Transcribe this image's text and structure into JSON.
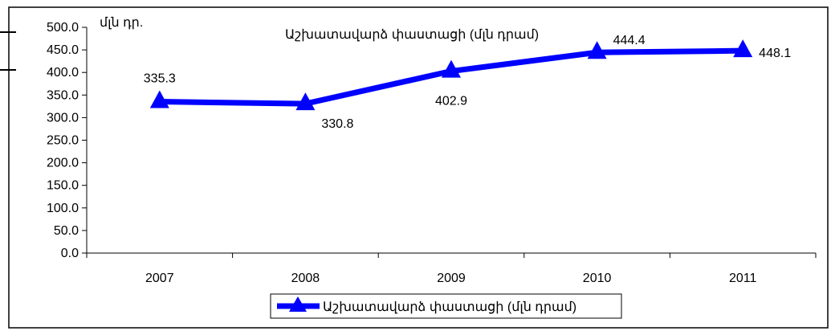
{
  "chart_data": {
    "type": "line",
    "title": "Աշխատավարձ փաստացի (մլն դրամ)",
    "unit_label": "մլն դր.",
    "categories": [
      "2007",
      "2008",
      "2009",
      "2010",
      "2011"
    ],
    "series": [
      {
        "name": "Աշխատավարձ փաստացի (մլն դրամ)",
        "values": [
          335.3,
          330.8,
          402.9,
          444.4,
          448.1
        ],
        "data_labels": [
          "335.3",
          "330.8",
          "402.9",
          "444.4",
          "448.1"
        ],
        "color": "#0000ff",
        "marker": "triangle"
      }
    ],
    "y_ticks": [
      "0.0",
      "50.0",
      "100.0",
      "150.0",
      "200.0",
      "250.0",
      "300.0",
      "350.0",
      "400.0",
      "450.0",
      "500.0"
    ],
    "ylim": [
      0,
      500
    ],
    "grid": false,
    "legend_position": "bottom"
  }
}
